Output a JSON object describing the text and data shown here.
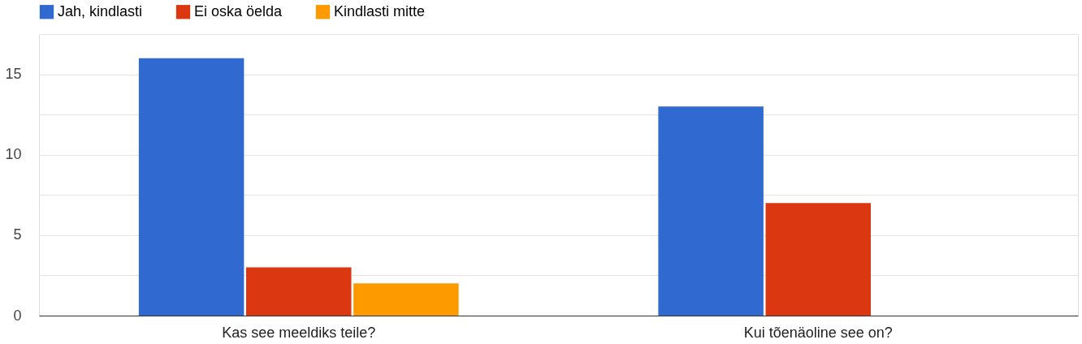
{
  "chart_data": {
    "type": "bar",
    "categories": [
      "Kas see meeldiks teile?",
      "Kui tõenäoline see on?"
    ],
    "series": [
      {
        "name": "Jah, kindlasti",
        "color": "#3069d0",
        "values": [
          16,
          13
        ]
      },
      {
        "name": "Ei oska öelda",
        "color": "#db3812",
        "values": [
          3,
          7
        ]
      },
      {
        "name": "Kindlasti mitte",
        "color": "#fd9a00",
        "values": [
          2,
          0
        ]
      }
    ],
    "ylim": [
      0,
      17.5
    ],
    "yticks": [
      0,
      {
        "value": 2.5,
        "label": null
      },
      5,
      {
        "value": 7.5,
        "label": null
      },
      10,
      {
        "value": 12.5,
        "label": null
      },
      15,
      {
        "value": 17.5,
        "label": null
      }
    ],
    "grid": "y",
    "legend": "top"
  }
}
